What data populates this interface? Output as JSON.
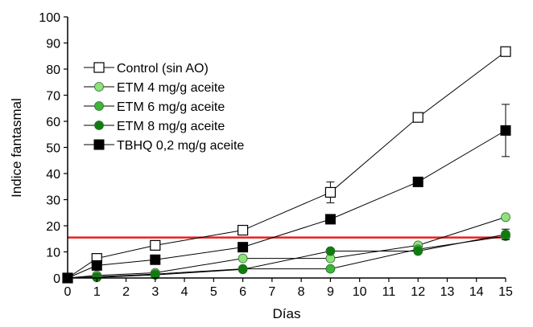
{
  "chart_data": {
    "type": "line",
    "xlabel": "Días",
    "ylabel": "Indice fantasmal",
    "xlim": [
      0,
      15
    ],
    "ylim": [
      0,
      100
    ],
    "xticks": [
      "0",
      "1",
      "2",
      "3",
      "4",
      "5",
      "6",
      "7",
      "8",
      "9",
      "10",
      "11",
      "12",
      "13",
      "14",
      "15"
    ],
    "yticks": [
      "0",
      "10",
      "20",
      "30",
      "40",
      "50",
      "60",
      "70",
      "80",
      "90",
      "100"
    ],
    "grid": false,
    "legend_position": "top-left",
    "reference_line": {
      "y": 15.5,
      "color": "#e8201f"
    },
    "series": [
      {
        "name": "Control (sin AO)",
        "marker": "open-square",
        "color": "#000000",
        "x": [
          0,
          1,
          3,
          6,
          9,
          12,
          15
        ],
        "y": [
          0,
          7.5,
          12.5,
          18.3,
          32.8,
          61.5,
          86.7
        ],
        "err": [
          0,
          0,
          0,
          0,
          4.0,
          0,
          0
        ]
      },
      {
        "name": "ETM 4 mg/g aceite",
        "marker": "circle",
        "color": "#8ee27a",
        "x": [
          0,
          1,
          3,
          6,
          9,
          12,
          15
        ],
        "y": [
          0,
          1.0,
          2.0,
          7.5,
          7.5,
          12.5,
          23.3
        ],
        "err": [
          0,
          0,
          0,
          0,
          0,
          0,
          0
        ]
      },
      {
        "name": "ETM 6 mg/g aceite",
        "marker": "circle",
        "color": "#3cb538",
        "x": [
          0,
          1,
          3,
          6,
          9,
          12,
          15
        ],
        "y": [
          0,
          0.5,
          1.5,
          3.5,
          3.5,
          11.0,
          16.0
        ],
        "err": [
          0,
          0,
          0,
          0,
          0,
          0,
          0
        ]
      },
      {
        "name": "ETM 8 mg/g aceite",
        "marker": "circle",
        "color": "#0e7d0e",
        "x": [
          0,
          1,
          3,
          6,
          9,
          12,
          15
        ],
        "y": [
          0,
          0.2,
          1.2,
          3.3,
          10.3,
          10.3,
          16.7
        ],
        "err": [
          0,
          0,
          0,
          0,
          0,
          0,
          2.0
        ]
      },
      {
        "name": "TBHQ 0,2 mg/g aceite",
        "marker": "filled-square",
        "color": "#000000",
        "x": [
          0,
          1,
          3,
          6,
          9,
          12,
          15
        ],
        "y": [
          0,
          4.8,
          7.0,
          11.8,
          22.5,
          36.8,
          56.5
        ],
        "err": [
          0,
          0,
          0,
          0,
          0,
          0,
          10.0
        ]
      }
    ]
  }
}
